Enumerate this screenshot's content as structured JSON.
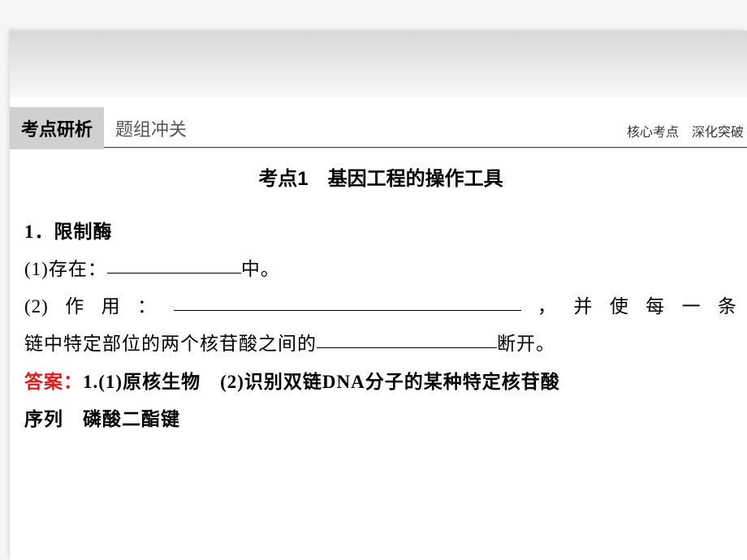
{
  "header": {
    "tab_active": "考点研析",
    "tab_inactive": "题组冲关",
    "tab_right": "核心考点　深化突破"
  },
  "content": {
    "section_title": "考点1　基因工程的操作工具",
    "item1_num": "1．",
    "item1_title": "限制酶",
    "sub1_label": "(1)存在：",
    "sub1_tail": "中。",
    "sub2_label": "(2)作用：",
    "sub2_mid": "，并使每一条",
    "sub2_line2a": "链中特定部位的两个核苷酸之间的",
    "sub2_line2b": "断开。",
    "answer_label": "答案：",
    "answer_text1": "1.(1)原核生物　(2)识别双链DNA分子的某种特定核苷酸",
    "answer_text2": "序列　磷酸二酯键"
  },
  "styling": {
    "blank1_width": 165,
    "blank2_width": 428,
    "blank3_width": 222,
    "background_color": "#f5f5f5",
    "page_color": "#ffffff",
    "gradient_top": "#d8d8d8",
    "gradient_bottom": "#f8f8f8",
    "tab_active_bg": "#d0d0d0",
    "answer_color": "#d62020",
    "body_fontsize": 23,
    "title_fontsize": 24,
    "tab_fontsize": 22
  }
}
